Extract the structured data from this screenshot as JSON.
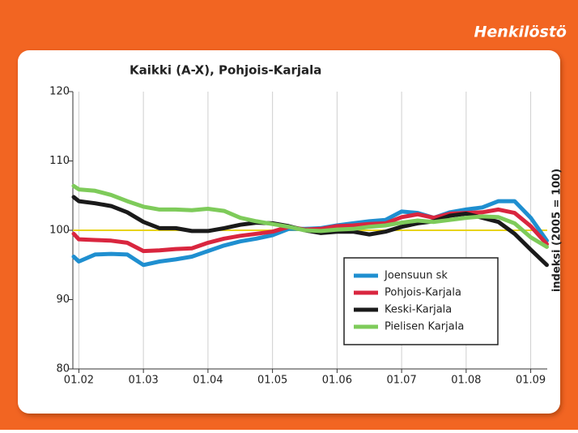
{
  "header": "Henkilöstö",
  "chart_data": {
    "type": "line",
    "title": "Kaikki (A-X), Pohjois-Karjala",
    "y_label": "indeksi (2005 = 100)",
    "x": [
      2001.92,
      2002.0,
      2002.25,
      2002.5,
      2002.75,
      2003.0,
      2003.25,
      2003.5,
      2003.75,
      2004.0,
      2004.25,
      2004.5,
      2004.75,
      2005.0,
      2005.25,
      2005.5,
      2005.75,
      2006.0,
      2006.25,
      2006.5,
      2006.75,
      2007.0,
      2007.25,
      2007.5,
      2007.75,
      2008.0,
      2008.25,
      2008.5,
      2008.75,
      2009.0,
      2009.25
    ],
    "series": [
      {
        "name": "Joensuun sk",
        "color": "#1f8fd0",
        "values": [
          96.2,
          95.5,
          96.5,
          96.6,
          96.5,
          95.0,
          95.5,
          95.8,
          96.2,
          97.0,
          97.8,
          98.4,
          98.8,
          99.3,
          100.2,
          100.2,
          100.3,
          100.7,
          101.0,
          101.3,
          101.5,
          102.7,
          102.5,
          101.8,
          102.6,
          103.0,
          103.3,
          104.2,
          104.2,
          101.8,
          98.5
        ]
      },
      {
        "name": "Pohjois-Karjala",
        "color": "#d9263f",
        "values": [
          99.5,
          98.7,
          98.6,
          98.5,
          98.2,
          97.0,
          97.1,
          97.3,
          97.4,
          98.2,
          98.8,
          99.2,
          99.5,
          99.8,
          100.5,
          100.1,
          100.2,
          100.6,
          100.7,
          100.9,
          101.0,
          101.9,
          102.3,
          101.8,
          102.4,
          102.5,
          102.6,
          103.0,
          102.5,
          100.6,
          98.0
        ]
      },
      {
        "name": "Keski-Karjala",
        "color": "#1a1a1a",
        "values": [
          104.8,
          104.2,
          103.9,
          103.5,
          102.6,
          101.2,
          100.3,
          100.3,
          99.9,
          99.9,
          100.3,
          100.8,
          101.1,
          101.0,
          100.6,
          100.0,
          99.6,
          99.8,
          99.8,
          99.4,
          99.8,
          100.5,
          101.0,
          101.3,
          102.1,
          102.4,
          101.8,
          101.2,
          99.5,
          97.2,
          95.0
        ]
      },
      {
        "name": "Pielisen Karjala",
        "color": "#7ecb5a",
        "values": [
          106.4,
          105.9,
          105.7,
          105.1,
          104.2,
          103.4,
          103.0,
          103.0,
          102.9,
          103.1,
          102.8,
          101.8,
          101.3,
          100.9,
          100.5,
          100.0,
          99.9,
          100.1,
          100.2,
          100.5,
          100.7,
          101.1,
          101.4,
          101.2,
          101.5,
          101.8,
          102.0,
          101.9,
          101.0,
          99.0,
          97.6
        ]
      }
    ],
    "reference_line": {
      "value": 100,
      "color": "#e8d31a"
    },
    "xlim": [
      2001.907,
      2009.256
    ],
    "xticks": [
      {
        "value": 2002,
        "label": "01.02"
      },
      {
        "value": 2003,
        "label": "01.03"
      },
      {
        "value": 2004,
        "label": "01.04"
      },
      {
        "value": 2005,
        "label": "01.05"
      },
      {
        "value": 2006,
        "label": "01.06"
      },
      {
        "value": 2007,
        "label": "01.07"
      },
      {
        "value": 2008,
        "label": "01.08"
      },
      {
        "value": 2009,
        "label": "01.09"
      }
    ],
    "ylim": [
      80,
      120
    ],
    "yticks": [
      80,
      90,
      100,
      110,
      120
    ],
    "grid": true
  }
}
